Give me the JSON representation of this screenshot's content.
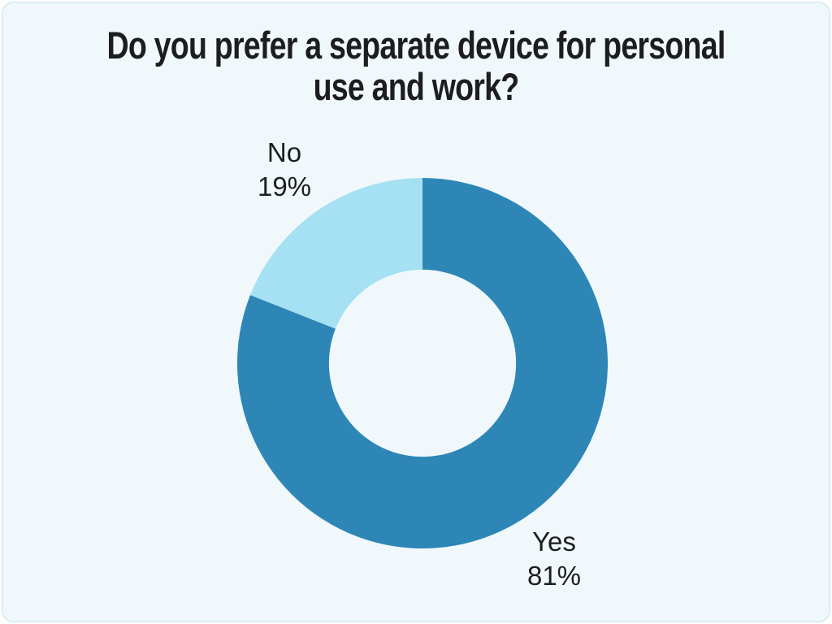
{
  "card": {
    "background": "#F0F8FC",
    "border_color": "#D7EDF6",
    "outer_background": "#FFFFFF"
  },
  "chart_data": {
    "type": "pie",
    "donut": true,
    "title": "Do you prefer a separate device for personal use and work?",
    "title_lines": [
      "Do you prefer a separate device for personal",
      "use and work?"
    ],
    "start_angle_deg": -90,
    "direction": "clockwise",
    "inner_radius_ratio": 0.505,
    "legend": "none",
    "text_color": "#1D1D1F",
    "segments": [
      {
        "label": "Yes",
        "value": 81,
        "pct_text": "81%",
        "color": "#2E86B6"
      },
      {
        "label": "No",
        "value": 19,
        "pct_text": "19%",
        "color": "#A5E1F3"
      }
    ]
  }
}
